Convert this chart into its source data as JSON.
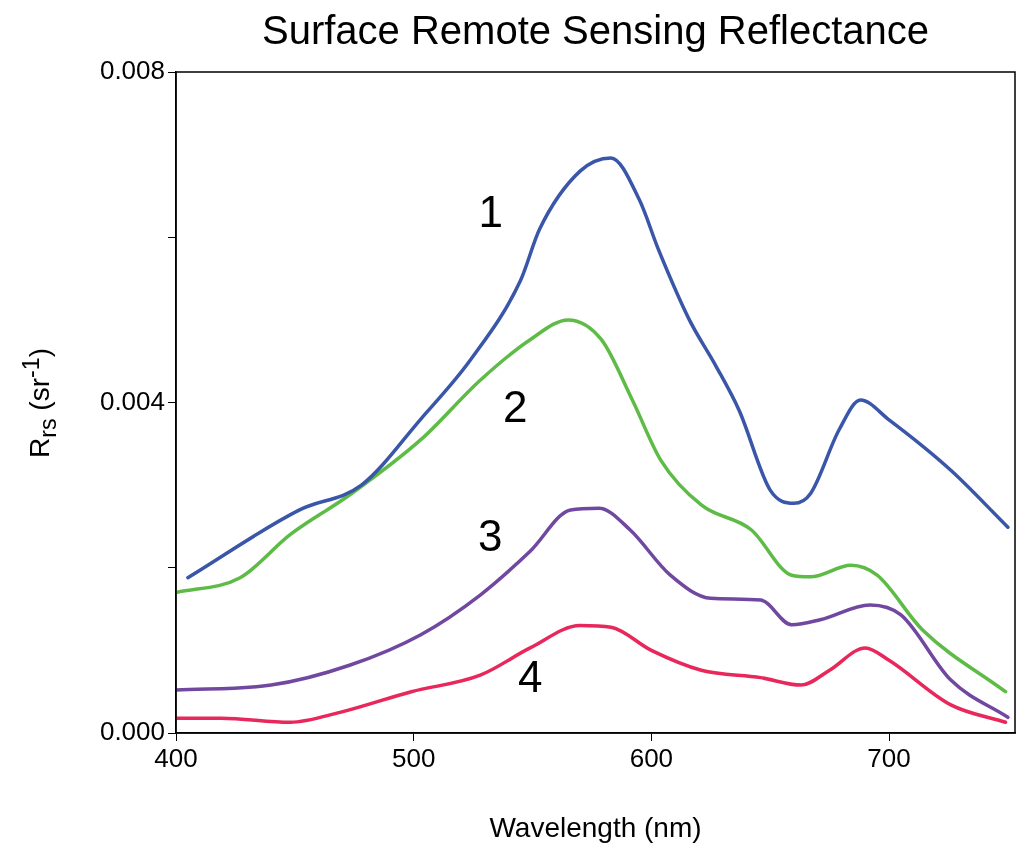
{
  "chart_data": {
    "type": "line",
    "title": "Surface Remote Sensing Reflectance",
    "xlabel": "Wavelength (nm)",
    "ylabel": "R$_{rs}$ (sr$^{-1}$)",
    "xlim": [
      400,
      753
    ],
    "xticks": [
      400,
      500,
      600,
      700
    ],
    "ylim": [
      0,
      0.008
    ],
    "yticks": [
      {
        "value": 0,
        "label": "0.000"
      },
      {
        "value": 0.002,
        "label": null
      },
      {
        "value": 0.004,
        "label": "0.004"
      },
      {
        "value": 0.006,
        "label": null
      },
      {
        "value": 0.008,
        "label": "0.008"
      }
    ],
    "grid": false,
    "legend": false,
    "marker": "none",
    "line_style": "solid",
    "series": [
      {
        "name": "1",
        "color": "#3a56a8",
        "x": [
          405,
          452,
          478,
          503,
          524,
          545,
          553,
          570,
          583,
          595,
          603,
          616,
          627,
          637,
          650,
          660,
          667,
          679,
          688,
          700,
          726,
          750
        ],
        "values": [
          0.00188,
          0.0027,
          0.003,
          0.0038,
          0.00452,
          0.00548,
          0.0061,
          0.0068,
          0.00696,
          0.00645,
          0.00585,
          0.005,
          0.00445,
          0.0039,
          0.00294,
          0.00278,
          0.0029,
          0.00367,
          0.00403,
          0.00379,
          0.00318,
          0.00249
        ]
      },
      {
        "name": "2",
        "color": "#5dbb46",
        "x": [
          400,
          427,
          448,
          473,
          503,
          528,
          549,
          565,
          579,
          592,
          604,
          621,
          642,
          659,
          667,
          684,
          695,
          714,
          749
        ],
        "values": [
          0.0017,
          0.00188,
          0.0024,
          0.00288,
          0.00355,
          0.00427,
          0.00476,
          0.005,
          0.00476,
          0.00403,
          0.0033,
          0.00276,
          0.00246,
          0.00191,
          0.00189,
          0.00203,
          0.00191,
          0.00125,
          0.0005
        ]
      },
      {
        "name": "3",
        "color": "#7048a0",
        "x": [
          400,
          440,
          473,
          503,
          528,
          549,
          566,
          578,
          591,
          608,
          625,
          646,
          659,
          671,
          692,
          705,
          726,
          750
        ],
        "values": [
          0.00052,
          0.00058,
          0.00082,
          0.00119,
          0.00167,
          0.0022,
          0.0027,
          0.00272,
          0.00246,
          0.00191,
          0.00163,
          0.00161,
          0.00131,
          0.00137,
          0.00155,
          0.00143,
          0.00064,
          0.00019
        ]
      },
      {
        "name": "4",
        "color": "#e8275a",
        "x": [
          400,
          419,
          448,
          469,
          499,
          528,
          549,
          570,
          583,
          600,
          621,
          646,
          663,
          675,
          690,
          700,
          726,
          749
        ],
        "values": [
          0.00018,
          0.00018,
          0.00013,
          0.00025,
          0.0005,
          0.0007,
          0.00103,
          0.0013,
          0.00128,
          0.001,
          0.00076,
          0.00067,
          0.00058,
          0.00076,
          0.00103,
          0.00088,
          0.00034,
          0.00013
        ]
      }
    ]
  }
}
